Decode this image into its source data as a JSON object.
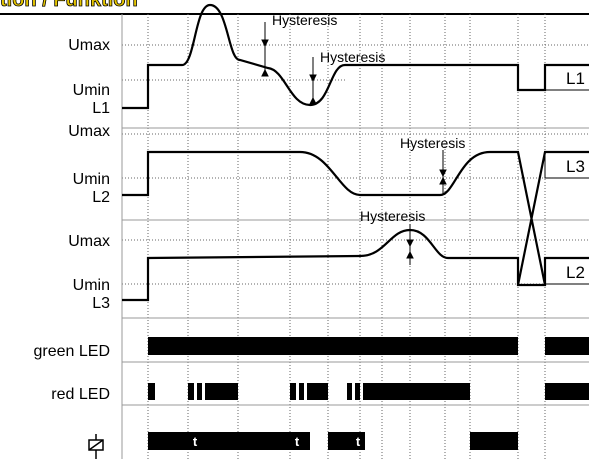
{
  "header": {
    "title": "tion / Funktion"
  },
  "rows": [
    {
      "umax": "Umax",
      "umin": "Umin",
      "line": "L1"
    },
    {
      "umax": "Umax",
      "umin": "Umin",
      "line": "L2"
    },
    {
      "umax": "Umax",
      "umin": "Umin",
      "line": "L3"
    }
  ],
  "outputs": {
    "green": "green LED",
    "red": "red LED"
  },
  "right_labels": [
    "L1",
    "L3",
    "L2"
  ],
  "hysteresis": [
    "Hysteresis",
    "Hysteresis",
    "Hysteresis",
    "Hysteresis"
  ],
  "timers": [
    "t",
    "t",
    "t"
  ]
}
